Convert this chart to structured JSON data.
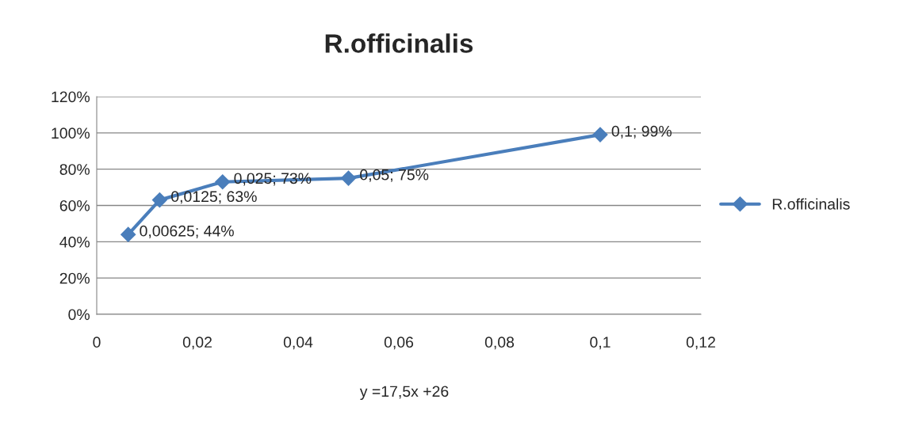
{
  "chart_data": {
    "type": "line",
    "title": "R.officinalis",
    "x": [
      0.00625,
      0.0125,
      0.025,
      0.05,
      0.1
    ],
    "series": [
      {
        "name": "R.officinalis",
        "color": "#4a7ebb",
        "values": [
          44,
          63,
          73,
          75,
          99
        ],
        "value_labels": [
          "0,00625; 44%",
          "0,0125; 63%",
          "0,025; 73%",
          "0,05; 75%",
          "0,1; 99%"
        ]
      }
    ],
    "xlim": [
      0,
      0.12
    ],
    "xticks": [
      {
        "value": 0,
        "label": "0"
      },
      {
        "value": 0.02,
        "label": "0,02"
      },
      {
        "value": 0.04,
        "label": "0,04"
      },
      {
        "value": 0.06,
        "label": "0,06"
      },
      {
        "value": 0.08,
        "label": "0,08"
      },
      {
        "value": 0.1,
        "label": "0,1"
      },
      {
        "value": 0.12,
        "label": "0,12"
      }
    ],
    "ylim": [
      0,
      120
    ],
    "yticks": [
      {
        "value": 0,
        "label": "0%"
      },
      {
        "value": 20,
        "label": "20%"
      },
      {
        "value": 40,
        "label": "40%"
      },
      {
        "value": 60,
        "label": "60%"
      },
      {
        "value": 80,
        "label": "80%"
      },
      {
        "value": 100,
        "label": "100%"
      },
      {
        "value": 120,
        "label": "120%"
      }
    ],
    "grid": "y",
    "legend": "right",
    "marker": "diamond",
    "line_style": "solid",
    "annotations": [
      "y =17,5x +26"
    ]
  }
}
